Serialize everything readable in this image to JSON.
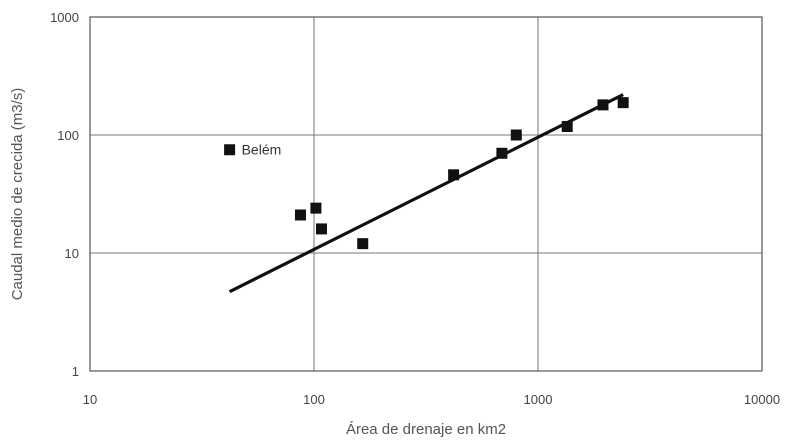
{
  "chart_data": {
    "type": "scatter",
    "title": "",
    "xlabel": "Área de drenaje en km2",
    "ylabel": "Caudal medio de crecida (m3/s)",
    "xscale": "log",
    "yscale": "log",
    "xlim": [
      10,
      10000
    ],
    "ylim": [
      1,
      1000
    ],
    "grid": true,
    "x_ticks": [
      "10",
      "100",
      "1000",
      "10000"
    ],
    "y_ticks": [
      "1",
      "10",
      "100",
      "1000"
    ],
    "points": [
      {
        "x": 42,
        "y": 75,
        "label": "Belém"
      },
      {
        "x": 87,
        "y": 21
      },
      {
        "x": 102,
        "y": 24
      },
      {
        "x": 108,
        "y": 16
      },
      {
        "x": 165,
        "y": 12
      },
      {
        "x": 420,
        "y": 46
      },
      {
        "x": 690,
        "y": 70
      },
      {
        "x": 800,
        "y": 100
      },
      {
        "x": 1350,
        "y": 118
      },
      {
        "x": 1950,
        "y": 180
      },
      {
        "x": 2400,
        "y": 188
      }
    ],
    "trendline": [
      {
        "x": 42,
        "y": 4.7
      },
      {
        "x": 2400,
        "y": 220
      }
    ],
    "colors": {
      "marker": "#111111",
      "trendline": "#111111",
      "grid": "#777777"
    }
  }
}
